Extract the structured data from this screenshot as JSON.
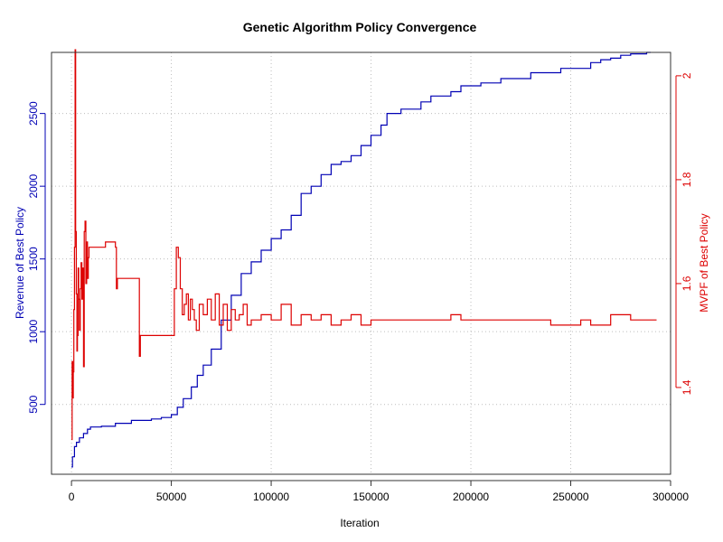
{
  "chart_data": {
    "type": "line",
    "title": "Genetic Algorithm Policy Convergence",
    "xlabel": "Iteration",
    "ylabel_left": "Revenue of Best Policy",
    "ylabel_right": "MVPF of Best Policy",
    "xlim": [
      -10000,
      300000
    ],
    "ylim_left": [
      20,
      2920
    ],
    "ylim_right": [
      1.233,
      2.045
    ],
    "x_ticks": [
      0,
      50000,
      100000,
      150000,
      200000,
      250000,
      300000
    ],
    "x_tick_labels": [
      "0",
      "50000",
      "100000",
      "150000",
      "200000",
      "250000",
      "300000"
    ],
    "y_left_ticks": [
      500,
      1000,
      1500,
      2000,
      2500
    ],
    "y_left_tick_labels": [
      "500",
      "1000",
      "1500",
      "2000",
      "2500"
    ],
    "y_right_ticks": [
      1.4,
      1.6,
      1.8,
      2.0
    ],
    "y_right_tick_labels": [
      "1.4",
      "1.6",
      "1.8",
      "2"
    ],
    "grid": true,
    "colors": {
      "revenue": "#0000b4",
      "mvpf": "#dd0000",
      "axis": "#333333",
      "grid": "#bdbdbd"
    },
    "series": [
      {
        "name": "Revenue of Best Policy",
        "axis": "left",
        "color": "#0000b4",
        "x": [
          0,
          500,
          1500,
          2500,
          4000,
          6000,
          8000,
          9500,
          15000,
          22000,
          30000,
          40000,
          45000,
          50000,
          53000,
          56000,
          60000,
          63000,
          66000,
          70000,
          75000,
          80000,
          85000,
          90000,
          95000,
          100000,
          105000,
          110000,
          115000,
          120000,
          125000,
          130000,
          135000,
          140000,
          145000,
          150000,
          155000,
          158000,
          165000,
          175000,
          180000,
          190000,
          195000,
          205000,
          215000,
          230000,
          245000,
          260000,
          265000,
          270000,
          275000,
          280000,
          288000,
          290000
        ],
        "y": [
          70,
          140,
          210,
          240,
          270,
          300,
          330,
          345,
          350,
          370,
          390,
          400,
          410,
          430,
          480,
          540,
          620,
          700,
          770,
          880,
          1080,
          1250,
          1400,
          1480,
          1560,
          1640,
          1700,
          1800,
          1950,
          2000,
          2080,
          2150,
          2170,
          2210,
          2280,
          2350,
          2420,
          2500,
          2530,
          2580,
          2620,
          2650,
          2690,
          2710,
          2740,
          2780,
          2810,
          2850,
          2870,
          2880,
          2900,
          2910,
          2920,
          2920
        ]
      },
      {
        "name": "MVPF of Best Policy",
        "axis": "right",
        "color": "#dd0000",
        "x": [
          0,
          300,
          600,
          900,
          1200,
          1500,
          1800,
          2100,
          2400,
          2700,
          3000,
          3300,
          3600,
          4000,
          4400,
          4800,
          5200,
          5600,
          6000,
          6400,
          6800,
          7200,
          7600,
          8000,
          8400,
          8800,
          9500,
          13000,
          17000,
          20000,
          22000,
          22500,
          23000,
          26000,
          30000,
          34000,
          34500,
          35000,
          40000,
          45000,
          50000,
          51500,
          52500,
          53500,
          54500,
          55500,
          56500,
          57500,
          58500,
          59500,
          60500,
          61500,
          62500,
          64000,
          66000,
          68000,
          70000,
          72000,
          74000,
          76000,
          78000,
          80000,
          82000,
          84000,
          86000,
          88000,
          90000,
          95000,
          100000,
          105000,
          110000,
          115000,
          120000,
          125000,
          130000,
          135000,
          140000,
          145000,
          150000,
          155000,
          160000,
          170000,
          180000,
          190000,
          195000,
          200000,
          210000,
          220000,
          230000,
          240000,
          245000,
          250000,
          255000,
          260000,
          265000,
          270000,
          280000,
          290000,
          293000
        ],
        "y": [
          1.3,
          1.45,
          1.38,
          1.43,
          1.55,
          1.67,
          2.05,
          1.7,
          1.58,
          1.47,
          1.5,
          1.63,
          1.57,
          1.51,
          1.59,
          1.64,
          1.57,
          1.63,
          1.44,
          1.7,
          1.72,
          1.6,
          1.68,
          1.61,
          1.65,
          1.67,
          1.67,
          1.67,
          1.68,
          1.68,
          1.67,
          1.59,
          1.61,
          1.61,
          1.61,
          1.46,
          1.5,
          1.5,
          1.5,
          1.5,
          1.5,
          1.59,
          1.67,
          1.65,
          1.59,
          1.54,
          1.56,
          1.58,
          1.53,
          1.57,
          1.55,
          1.53,
          1.51,
          1.56,
          1.54,
          1.57,
          1.53,
          1.58,
          1.52,
          1.56,
          1.51,
          1.55,
          1.53,
          1.54,
          1.56,
          1.52,
          1.53,
          1.54,
          1.53,
          1.56,
          1.52,
          1.54,
          1.53,
          1.54,
          1.52,
          1.53,
          1.54,
          1.52,
          1.53,
          1.53,
          1.53,
          1.53,
          1.53,
          1.54,
          1.53,
          1.53,
          1.53,
          1.53,
          1.53,
          1.52,
          1.52,
          1.52,
          1.53,
          1.52,
          1.52,
          1.54,
          1.53,
          1.53,
          1.53
        ]
      }
    ]
  }
}
